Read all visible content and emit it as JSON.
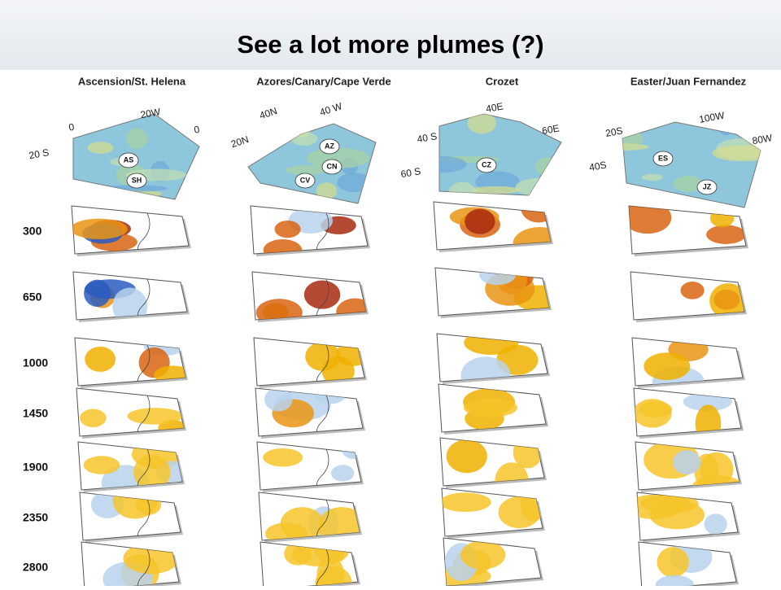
{
  "title": "See a lot more plumes (?)",
  "columns": [
    {
      "label": "Ascension/St. Helena",
      "axis_labels": [
        "0",
        "20W",
        "0",
        "20 S"
      ],
      "stations": [
        "AS",
        "SH"
      ]
    },
    {
      "label": "Azores/Canary/Cape Verde",
      "axis_labels": [
        "40N",
        "40 W",
        "20N"
      ],
      "stations": [
        "AZ",
        "CN",
        "CV"
      ]
    },
    {
      "label": "Crozet",
      "axis_labels": [
        "40E",
        "60E",
        "40 S",
        "60 S"
      ],
      "stations": [
        "CZ"
      ]
    },
    {
      "label": "Easter/Juan Fernandez",
      "axis_labels": [
        "100W",
        "80W",
        "20S",
        "40S"
      ],
      "stations": [
        "ES",
        "JZ"
      ]
    }
  ],
  "depths": [
    300,
    650,
    1000,
    1450,
    1900,
    2350,
    2800
  ]
}
